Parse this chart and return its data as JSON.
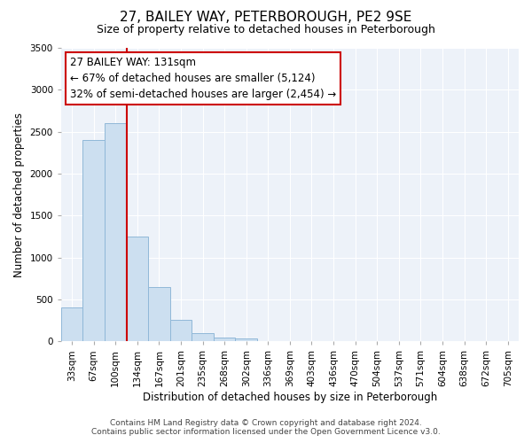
{
  "title": "27, BAILEY WAY, PETERBOROUGH, PE2 9SE",
  "subtitle": "Size of property relative to detached houses in Peterborough",
  "xlabel": "Distribution of detached houses by size in Peterborough",
  "ylabel": "Number of detached properties",
  "bar_values": [
    400,
    2400,
    2600,
    1250,
    650,
    260,
    100,
    50,
    30,
    0,
    0,
    0,
    0,
    0,
    0,
    0,
    0,
    0,
    0,
    0,
    0
  ],
  "categories": [
    "33sqm",
    "67sqm",
    "100sqm",
    "134sqm",
    "167sqm",
    "201sqm",
    "235sqm",
    "268sqm",
    "302sqm",
    "336sqm",
    "369sqm",
    "403sqm",
    "436sqm",
    "470sqm",
    "504sqm",
    "537sqm",
    "571sqm",
    "604sqm",
    "638sqm",
    "672sqm",
    "705sqm"
  ],
  "bar_color": "#ccdff0",
  "bar_edge_color": "#90b8d8",
  "ylim": [
    0,
    3500
  ],
  "yticks": [
    0,
    500,
    1000,
    1500,
    2000,
    2500,
    3000,
    3500
  ],
  "vline_x": 3,
  "vline_color": "#cc0000",
  "annotation_text_line1": "27 BAILEY WAY: 131sqm",
  "annotation_text_line2": "← 67% of detached houses are smaller (5,124)",
  "annotation_text_line3": "32% of semi-detached houses are larger (2,454) →",
  "annotation_box_color": "#cc0000",
  "footer_line1": "Contains HM Land Registry data © Crown copyright and database right 2024.",
  "footer_line2": "Contains public sector information licensed under the Open Government Licence v3.0.",
  "background_color": "#edf2f9",
  "figure_background": "#ffffff",
  "grid_color": "#ffffff",
  "title_fontsize": 11,
  "subtitle_fontsize": 9,
  "axis_label_fontsize": 8.5,
  "tick_fontsize": 7.5,
  "annotation_fontsize": 8.5,
  "footer_fontsize": 6.5
}
